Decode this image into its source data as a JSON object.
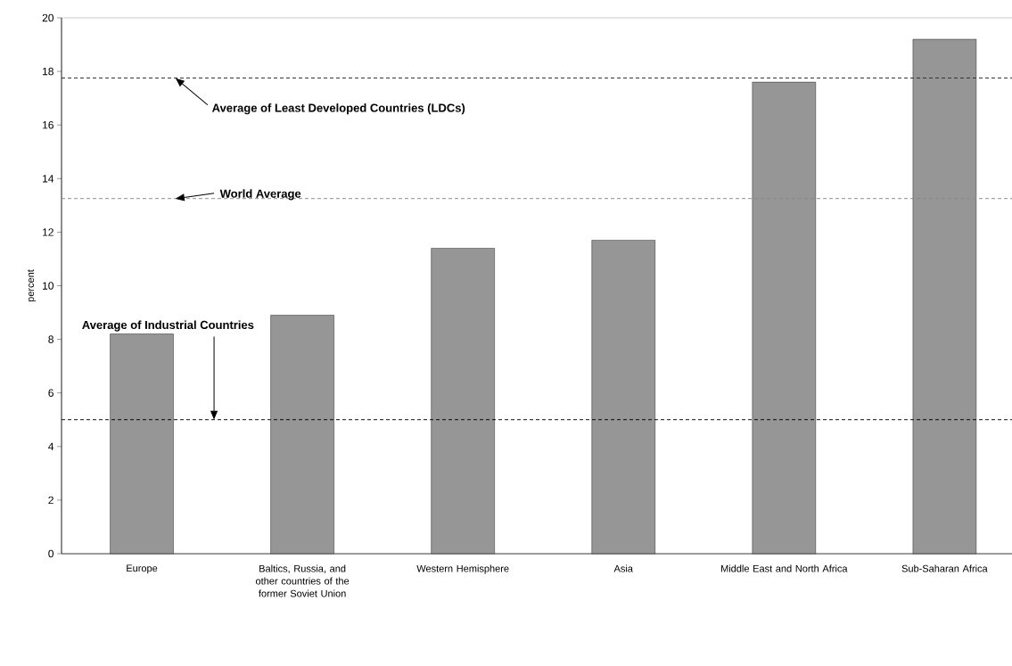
{
  "chart_data": {
    "type": "bar",
    "ylabel": "percent",
    "categories": [
      "Europe",
      "Baltics, Russia, and other countries of the former Soviet Union",
      "Western Hemisphere",
      "Asia",
      "Middle East and North Africa",
      "Sub-Saharan Africa"
    ],
    "values": [
      8.2,
      8.9,
      11.4,
      11.7,
      17.6,
      19.2
    ],
    "color": "#969696",
    "ylim": [
      0,
      20
    ],
    "yticks": [
      0,
      2,
      4,
      6,
      8,
      10,
      12,
      14,
      16,
      18,
      20
    ],
    "grid": false,
    "ref_lines": [
      {
        "axis": "y",
        "value": 17.75,
        "label": "Average of Least Developed Countries (LDCs)",
        "color": "#333333",
        "line_style": "dashed"
      },
      {
        "axis": "y",
        "value": 13.25,
        "label": "World Average",
        "color": "#888888",
        "line_style": "dashed"
      },
      {
        "axis": "y",
        "value": 5,
        "label": "Average of Industrial Countries",
        "color": "#000000",
        "line_style": "dashed"
      }
    ]
  }
}
